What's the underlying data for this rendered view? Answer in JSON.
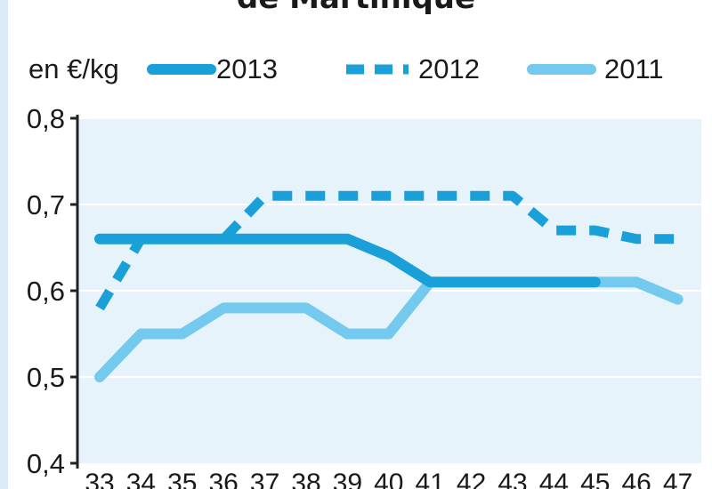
{
  "chart_data": {
    "type": "line",
    "title": "de Martinique",
    "ylabel": "en €/kg",
    "xlabel": "",
    "x": [
      33,
      34,
      35,
      36,
      37,
      38,
      39,
      40,
      41,
      42,
      43,
      44,
      45,
      46,
      47
    ],
    "x_tick_labels": [
      "33",
      "34",
      "35",
      "36",
      "37",
      "38",
      "39",
      "40",
      "41",
      "42",
      "43",
      "44",
      "45",
      "46",
      "47"
    ],
    "ylim": [
      0.4,
      0.8
    ],
    "y_ticks": [
      0.4,
      0.5,
      0.6,
      0.7,
      0.8
    ],
    "y_tick_labels": [
      "0,4",
      "0,5",
      "0,6",
      "0,7",
      "0,8"
    ],
    "grid": true,
    "legend_position": "top",
    "series": [
      {
        "name": "2013",
        "style": "solid",
        "color": "#1aa0d8",
        "x": [
          33,
          34,
          35,
          36,
          37,
          38,
          39,
          40,
          41,
          42,
          43,
          44,
          45
        ],
        "values": [
          0.66,
          0.66,
          0.66,
          0.66,
          0.66,
          0.66,
          0.66,
          0.64,
          0.61,
          0.61,
          0.61,
          0.61,
          0.61
        ]
      },
      {
        "name": "2012",
        "style": "dashed",
        "color": "#1aa0d8",
        "x": [
          33,
          34,
          35,
          36,
          37,
          38,
          39,
          40,
          41,
          42,
          43,
          44,
          45,
          46,
          47
        ],
        "values": [
          0.58,
          0.66,
          0.66,
          0.66,
          0.71,
          0.71,
          0.71,
          0.71,
          0.71,
          0.71,
          0.71,
          0.67,
          0.67,
          0.66,
          0.66
        ]
      },
      {
        "name": "2011",
        "style": "solid",
        "color": "#74c9ee",
        "x": [
          33,
          34,
          35,
          36,
          37,
          38,
          39,
          40,
          41,
          42,
          43,
          44,
          45,
          46,
          47
        ],
        "values": [
          0.5,
          0.55,
          0.55,
          0.58,
          0.58,
          0.58,
          0.55,
          0.55,
          0.61,
          0.61,
          0.61,
          0.61,
          0.61,
          0.61,
          0.59
        ]
      }
    ]
  },
  "colors": {
    "plot_background": "#e6f3fb",
    "gridline": "#ffffff",
    "axis": "#222222"
  }
}
